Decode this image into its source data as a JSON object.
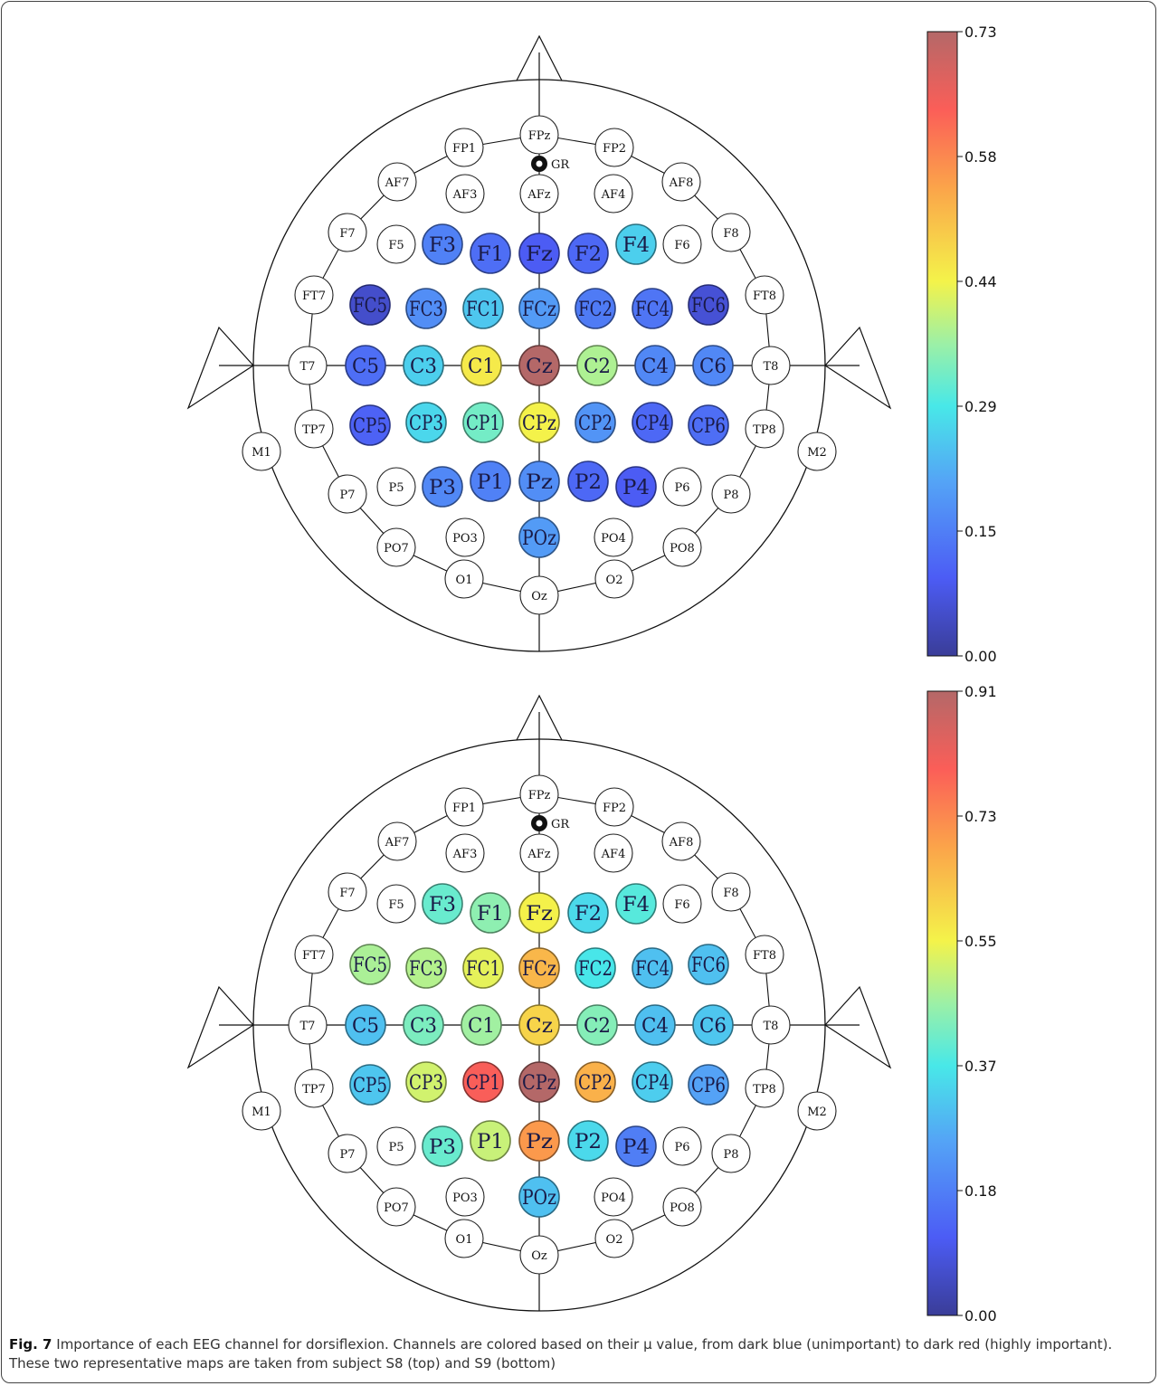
{
  "figure": {
    "caption_label": "Fig. 7",
    "caption_text": "Importance of each EEG channel for dorsiflexion. Channels are colored based on their μ value, from dark blue (unimportant) to dark red (highly important). These two representative maps are taken from subject S8 (top) and S9 (bottom)",
    "ground_label": "GR"
  },
  "chart_data": [
    {
      "type": "heatmap",
      "colorbar": {
        "min": 0.0,
        "max": 0.73,
        "ticks": [
          "0.00",
          "0.15",
          "0.29",
          "0.44",
          "0.58",
          "0.73"
        ]
      },
      "values": {
        "F3": 0.15,
        "F1": 0.12,
        "Fz": 0.09,
        "F2": 0.11,
        "F4": 0.26,
        "FC5": 0.05,
        "FC3": 0.17,
        "FC1": 0.25,
        "FCz": 0.19,
        "FC2": 0.14,
        "FC4": 0.13,
        "FC6": 0.06,
        "C5": 0.12,
        "C3": 0.26,
        "C1": 0.45,
        "Cz": 0.73,
        "C2": 0.38,
        "C4": 0.16,
        "C6": 0.16,
        "CP5": 0.1,
        "CP3": 0.27,
        "CP1": 0.33,
        "CPz": 0.44,
        "CP2": 0.18,
        "CP4": 0.11,
        "CP6": 0.12,
        "P3": 0.16,
        "P1": 0.15,
        "Pz": 0.17,
        "P2": 0.11,
        "P4": 0.09,
        "POz": 0.19
      }
    },
    {
      "type": "heatmap",
      "colorbar": {
        "min": 0.0,
        "max": 0.91,
        "ticks": [
          "0.00",
          "0.18",
          "0.37",
          "0.55",
          "0.73",
          "0.91"
        ]
      },
      "values": {
        "F3": 0.4,
        "F1": 0.44,
        "Fz": 0.55,
        "F2": 0.34,
        "F4": 0.38,
        "FC5": 0.47,
        "FC3": 0.48,
        "FC1": 0.53,
        "FCz": 0.65,
        "FC2": 0.36,
        "FC4": 0.3,
        "FC6": 0.3,
        "C5": 0.3,
        "C3": 0.42,
        "C1": 0.46,
        "Cz": 0.6,
        "C2": 0.43,
        "C4": 0.3,
        "C6": 0.31,
        "CP5": 0.31,
        "CP3": 0.51,
        "CP1": 0.8,
        "CPz": 0.91,
        "CP2": 0.66,
        "CP4": 0.32,
        "CP6": 0.25,
        "P3": 0.4,
        "P1": 0.5,
        "Pz": 0.7,
        "P2": 0.34,
        "P4": 0.18,
        "POz": 0.3
      }
    }
  ],
  "electrodes": {
    "FPz": {
      "label": "FPz"
    },
    "FP1": {
      "label": "FP1"
    },
    "FP2": {
      "label": "FP2"
    },
    "AF7": {
      "label": "AF7"
    },
    "AF3": {
      "label": "AF3"
    },
    "AFz": {
      "label": "AFz"
    },
    "AF4": {
      "label": "AF4"
    },
    "AF8": {
      "label": "AF8"
    },
    "F7": {
      "label": "F7"
    },
    "F5": {
      "label": "F5"
    },
    "F3": {
      "label": "F3"
    },
    "F1": {
      "label": "F1"
    },
    "Fz": {
      "label": "Fz"
    },
    "F2": {
      "label": "F2"
    },
    "F4": {
      "label": "F4"
    },
    "F6": {
      "label": "F6"
    },
    "F8": {
      "label": "F8"
    },
    "FT7": {
      "label": "FT7"
    },
    "FC5": {
      "label": "FC5"
    },
    "FC3": {
      "label": "FC3"
    },
    "FC1": {
      "label": "FC1"
    },
    "FCz": {
      "label": "FCz"
    },
    "FC2": {
      "label": "FC2"
    },
    "FC4": {
      "label": "FC4"
    },
    "FC6": {
      "label": "FC6"
    },
    "FT8": {
      "label": "FT8"
    },
    "T7": {
      "label": "T7"
    },
    "C5": {
      "label": "C5"
    },
    "C3": {
      "label": "C3"
    },
    "C1": {
      "label": "C1"
    },
    "Cz": {
      "label": "Cz"
    },
    "C2": {
      "label": "C2"
    },
    "C4": {
      "label": "C4"
    },
    "C6": {
      "label": "C6"
    },
    "T8": {
      "label": "T8"
    },
    "TP7": {
      "label": "TP7"
    },
    "CP5": {
      "label": "CP5"
    },
    "CP3": {
      "label": "CP3"
    },
    "CP1": {
      "label": "CP1"
    },
    "CPz": {
      "label": "CPz"
    },
    "CP2": {
      "label": "CP2"
    },
    "CP4": {
      "label": "CP4"
    },
    "CP6": {
      "label": "CP6"
    },
    "TP8": {
      "label": "TP8"
    },
    "M1": {
      "label": "M1"
    },
    "M2": {
      "label": "M2"
    },
    "P7": {
      "label": "P7"
    },
    "P5": {
      "label": "P5"
    },
    "P3": {
      "label": "P3"
    },
    "P1": {
      "label": "P1"
    },
    "Pz": {
      "label": "Pz"
    },
    "P2": {
      "label": "P2"
    },
    "P4": {
      "label": "P4"
    },
    "P6": {
      "label": "P6"
    },
    "P8": {
      "label": "P8"
    },
    "PO7": {
      "label": "PO7"
    },
    "PO3": {
      "label": "PO3"
    },
    "POz": {
      "label": "POz"
    },
    "PO4": {
      "label": "PO4"
    },
    "PO8": {
      "label": "PO8"
    },
    "O1": {
      "label": "O1"
    },
    "Oz": {
      "label": "Oz"
    },
    "O2": {
      "label": "O2"
    }
  }
}
